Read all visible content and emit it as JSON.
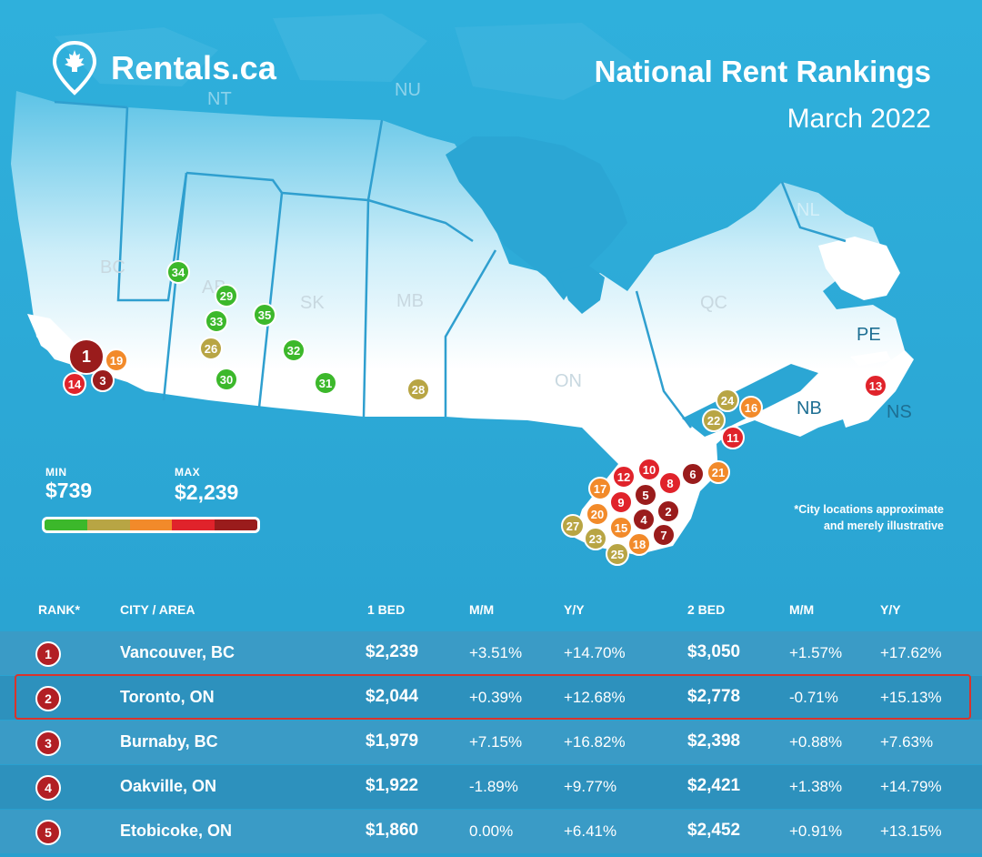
{
  "brand": {
    "name": "Rentals.ca"
  },
  "header": {
    "title": "National Rent Rankings",
    "subtitle": "March 2022"
  },
  "regions": [
    "NT",
    "NU",
    "BC",
    "AB",
    "SK",
    "MB",
    "ON",
    "QC",
    "NL",
    "PE",
    "NB",
    "NS"
  ],
  "legend": {
    "min_label": "MIN",
    "min_value": "$739",
    "max_label": "MAX",
    "max_value": "$2,239",
    "scale_colors": [
      "#3cb82b",
      "#b8a544",
      "#f28a2a",
      "#e0232b",
      "#9a1c1c"
    ]
  },
  "note": {
    "line1": "*City locations approximate",
    "line2": "and merely illustrative"
  },
  "markers": [
    {
      "rank": "1",
      "color": "#9a1c1c"
    },
    {
      "rank": "2",
      "color": "#9a1c1c"
    },
    {
      "rank": "3",
      "color": "#9a1c1c"
    },
    {
      "rank": "4",
      "color": "#9a1c1c"
    },
    {
      "rank": "5",
      "color": "#9a1c1c"
    },
    {
      "rank": "6",
      "color": "#9a1c1c"
    },
    {
      "rank": "7",
      "color": "#9a1c1c"
    },
    {
      "rank": "8",
      "color": "#e0232b"
    },
    {
      "rank": "9",
      "color": "#e0232b"
    },
    {
      "rank": "10",
      "color": "#e0232b"
    },
    {
      "rank": "11",
      "color": "#e0232b"
    },
    {
      "rank": "12",
      "color": "#e0232b"
    },
    {
      "rank": "13",
      "color": "#e0232b"
    },
    {
      "rank": "14",
      "color": "#e0232b"
    },
    {
      "rank": "15",
      "color": "#f28a2a"
    },
    {
      "rank": "16",
      "color": "#f28a2a"
    },
    {
      "rank": "17",
      "color": "#f28a2a"
    },
    {
      "rank": "18",
      "color": "#f28a2a"
    },
    {
      "rank": "19",
      "color": "#f28a2a"
    },
    {
      "rank": "20",
      "color": "#f28a2a"
    },
    {
      "rank": "21",
      "color": "#f28a2a"
    },
    {
      "rank": "22",
      "color": "#b8a544"
    },
    {
      "rank": "23",
      "color": "#b8a544"
    },
    {
      "rank": "24",
      "color": "#b8a544"
    },
    {
      "rank": "25",
      "color": "#b8a544"
    },
    {
      "rank": "26",
      "color": "#b8a544"
    },
    {
      "rank": "27",
      "color": "#b8a544"
    },
    {
      "rank": "28",
      "color": "#b8a544"
    },
    {
      "rank": "29",
      "color": "#3cb82b"
    },
    {
      "rank": "30",
      "color": "#3cb82b"
    },
    {
      "rank": "31",
      "color": "#3cb82b"
    },
    {
      "rank": "32",
      "color": "#3cb82b"
    },
    {
      "rank": "33",
      "color": "#3cb82b"
    },
    {
      "rank": "34",
      "color": "#3cb82b"
    },
    {
      "rank": "35",
      "color": "#3cb82b"
    }
  ],
  "table": {
    "headers": {
      "rank": "RANK*",
      "city": "CITY / AREA",
      "bed1": "1 BED",
      "mm1": "M/M",
      "yy1": "Y/Y",
      "bed2": "2 BED",
      "mm2": "M/M",
      "yy2": "Y/Y"
    },
    "rows": [
      {
        "rank": "1",
        "city": "Vancouver, BC",
        "bed1": "$2,239",
        "mm1": "+3.51%",
        "yy1": "+14.70%",
        "bed2": "$3,050",
        "mm2": "+1.57%",
        "yy2": "+17.62%"
      },
      {
        "rank": "2",
        "city": "Toronto, ON",
        "bed1": "$2,044",
        "mm1": "+0.39%",
        "yy1": "+12.68%",
        "bed2": "$2,778",
        "mm2": "-0.71%",
        "yy2": "+15.13%"
      },
      {
        "rank": "3",
        "city": "Burnaby, BC",
        "bed1": "$1,979",
        "mm1": "+7.15%",
        "yy1": "+16.82%",
        "bed2": "$2,398",
        "mm2": "+0.88%",
        "yy2": "+7.63%"
      },
      {
        "rank": "4",
        "city": "Oakville, ON",
        "bed1": "$1,922",
        "mm1": "-1.89%",
        "yy1": "+9.77%",
        "bed2": "$2,421",
        "mm2": "+1.38%",
        "yy2": "+14.79%"
      },
      {
        "rank": "5",
        "city": "Etobicoke, ON",
        "bed1": "$1,860",
        "mm1": "0.00%",
        "yy1": "+6.41%",
        "bed2": "$2,452",
        "mm2": "+0.91%",
        "yy2": "+13.15%"
      }
    ]
  }
}
